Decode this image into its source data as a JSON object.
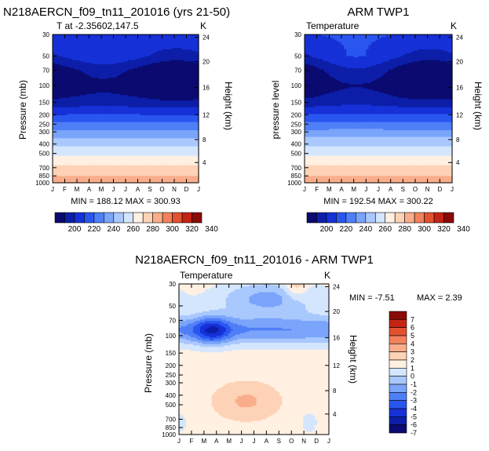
{
  "colors": {
    "abs_scale": [
      "#0a0a70",
      "#0d1fa8",
      "#1631d8",
      "#2a56f0",
      "#4f7ff7",
      "#7ba4fb",
      "#a9c8fd",
      "#d4e6fd",
      "#fff0e2",
      "#fdd2b6",
      "#f9ad8a",
      "#f2815c",
      "#e3512f",
      "#c42414",
      "#8a0a06"
    ],
    "diff_scale": [
      "#0a0a70",
      "#0d1fa8",
      "#1631d8",
      "#2a56f0",
      "#4f7ff7",
      "#7ba4fb",
      "#a9c8fd",
      "#d4e6fd",
      "#fff0e2",
      "#fdd2b6",
      "#f9ad8a",
      "#f2815c",
      "#e3512f",
      "#c42414",
      "#8a0a06"
    ]
  },
  "chart_data": [
    {
      "type": "heatmap",
      "title": "N218AERCN_f09_tn11_201016 (yrs 21-50)",
      "subtitle_left": "T at -2.35602,147.5",
      "subtitle_right": "K",
      "xlabel": "",
      "ylabel": "Pressure (mb)",
      "ylabel_right": "Height (km)",
      "x_ticks": [
        "J",
        "F",
        "M",
        "A",
        "M",
        "J",
        "J",
        "A",
        "S",
        "O",
        "N",
        "D",
        "J"
      ],
      "y_ticks": [
        "30",
        "50",
        "70",
        "100",
        "150",
        "200",
        "250",
        "300",
        "400",
        "500",
        "700",
        "850",
        "1000"
      ],
      "y_ticks_right": [
        "24",
        "20",
        "16",
        "12",
        "8",
        "4"
      ],
      "stats": "MIN = 188.12  MAX = 300.93",
      "colorbar_labels": [
        "200",
        "220",
        "240",
        "260",
        "280",
        "300",
        "320",
        "340"
      ],
      "levels": [
        190,
        200,
        210,
        220,
        230,
        240,
        250,
        260,
        270,
        280,
        290,
        300,
        310,
        320,
        330,
        340
      ],
      "profile_pressure": [
        30,
        50,
        70,
        100,
        150,
        200,
        250,
        300,
        400,
        500,
        700,
        850,
        1000
      ],
      "profile_values": [
        218,
        212,
        196,
        190,
        204,
        220,
        232,
        242,
        258,
        268,
        282,
        290,
        298
      ],
      "min": 188.12,
      "max": 300.93
    },
    {
      "type": "heatmap",
      "title": "ARM TWP1",
      "subtitle_left": "Temperature",
      "subtitle_right": "K",
      "xlabel": "",
      "ylabel": "pressure level",
      "ylabel_right": "Height (km)",
      "x_ticks": [
        "J",
        "F",
        "M",
        "A",
        "M",
        "J",
        "J",
        "A",
        "S",
        "O",
        "N",
        "D",
        "J"
      ],
      "y_ticks": [
        "30",
        "50",
        "70",
        "100",
        "150",
        "200",
        "250",
        "300",
        "400",
        "500",
        "700",
        "850",
        "1000"
      ],
      "y_ticks_right": [
        "24",
        "20",
        "16",
        "12",
        "8",
        "4"
      ],
      "stats": "MIN = 192.54  MAX = 300.22",
      "colorbar_labels": [
        "200",
        "220",
        "240",
        "260",
        "280",
        "300",
        "320",
        "340"
      ],
      "levels": [
        190,
        200,
        210,
        220,
        230,
        240,
        250,
        260,
        270,
        280,
        290,
        300,
        310,
        320,
        330,
        340
      ],
      "profile_pressure": [
        30,
        50,
        70,
        100,
        150,
        200,
        250,
        300,
        400,
        500,
        700,
        850,
        1000
      ],
      "profile_values": [
        220,
        213,
        198,
        192,
        205,
        221,
        233,
        243,
        258,
        268,
        282,
        290,
        298
      ],
      "min": 192.54,
      "max": 300.22
    },
    {
      "type": "heatmap",
      "title": "N218AERCN_f09_tn11_201016 - ARM TWP1",
      "subtitle_left": "Temperature",
      "subtitle_right": "K",
      "xlabel": "",
      "ylabel": "Pressure (mb)",
      "ylabel_right": "Height (km)",
      "x_ticks": [
        "J",
        "F",
        "M",
        "A",
        "M",
        "J",
        "J",
        "A",
        "S",
        "O",
        "N",
        "D",
        "J"
      ],
      "y_ticks": [
        "30",
        "50",
        "70",
        "100",
        "150",
        "200",
        "250",
        "300",
        "400",
        "500",
        "700",
        "850",
        "1000"
      ],
      "y_ticks_right": [
        "24",
        "20",
        "16",
        "12",
        "8",
        "4"
      ],
      "stats_min": "MIN =   -7.51",
      "stats_max": "MAX =    2.39",
      "colorbar_labels": [
        "7",
        "6",
        "5",
        "4",
        "3",
        "2",
        "1",
        "0",
        "-1",
        "-2",
        "-3",
        "-4",
        "-5",
        "-6",
        "-7"
      ],
      "levels": [
        -7,
        -6,
        -5,
        -4,
        -3,
        -2,
        -1,
        0,
        1,
        2,
        3,
        4,
        5,
        6,
        7
      ],
      "min": -7.51,
      "max": 2.39
    }
  ]
}
